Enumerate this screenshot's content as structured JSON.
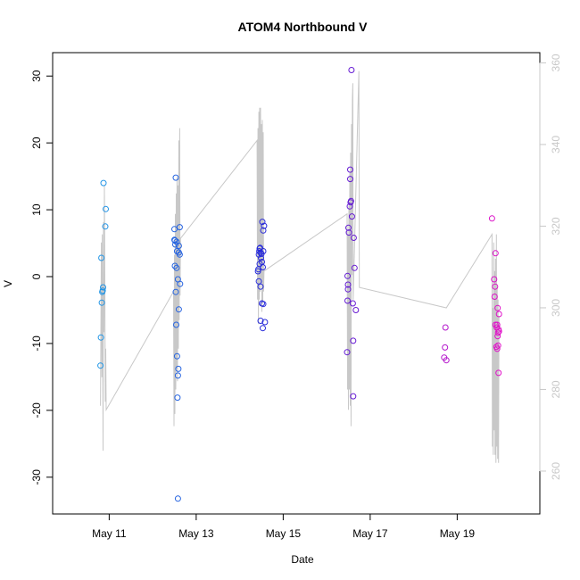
{
  "chart_data": {
    "type": "scatter",
    "title": "ATOM4 Northbound V",
    "xlabel": "Date",
    "ylabel": "V",
    "x_ticks": [
      "May 11",
      "May 13",
      "May 15",
      "May 17",
      "May 19"
    ],
    "y_ticks": [
      "-30",
      "-20",
      "-10",
      "0",
      "10",
      "20",
      "30"
    ],
    "y2_ticks": [
      "260",
      "280",
      "300",
      "320",
      "340",
      "360"
    ],
    "xlim_days": [
      9.7,
      20.9
    ],
    "ylim": [
      -35.5,
      33.5
    ],
    "y2lim": [
      249.5,
      362.5
    ],
    "grid": false,
    "legend": "none",
    "colors": {
      "points_start": "#2196e6",
      "points_mid": "#2a20d8",
      "points_end": "#e011c8",
      "line": "#c8c8c8",
      "axis_right": "#c8c8c8"
    },
    "points": [
      {
        "x": "May 10 19:12",
        "y": -13.3
      },
      {
        "x": "May 10 19:26",
        "y": -9.1
      },
      {
        "x": "May 10 19:55",
        "y": -3.9
      },
      {
        "x": "May 10 20:10",
        "y": -2.3
      },
      {
        "x": "May 10 20:24",
        "y": -2.1
      },
      {
        "x": "May 10 20:38",
        "y": -1.6
      },
      {
        "x": "May 10 19:40",
        "y": 2.8
      },
      {
        "x": "May 10 20:53",
        "y": 14.0
      },
      {
        "x": "May 10 21:50",
        "y": 7.5
      },
      {
        "x": "May 10 22:05",
        "y": 10.1
      },
      {
        "x": "May 12 12:00",
        "y": 7.1
      },
      {
        "x": "May 12 12:00",
        "y": 5.5
      },
      {
        "x": "May 12 12:14",
        "y": 5.4
      },
      {
        "x": "May 12 12:29",
        "y": 4.8
      },
      {
        "x": "May 12 13:12",
        "y": 5.2
      },
      {
        "x": "May 12 12:14",
        "y": 1.6
      },
      {
        "x": "May 12 13:12",
        "y": 1.3
      },
      {
        "x": "May 12 12:43",
        "y": -2.3
      },
      {
        "x": "May 12 12:43",
        "y": 14.8
      },
      {
        "x": "May 12 13:26",
        "y": 3.8
      },
      {
        "x": "May 12 13:55",
        "y": -0.4
      },
      {
        "x": "May 12 14:24",
        "y": 3.6
      },
      {
        "x": "May 12 14:53",
        "y": 3.3
      },
      {
        "x": "May 12 14:24",
        "y": 4.6
      },
      {
        "x": "May 12 14:53",
        "y": 7.4
      },
      {
        "x": "May 12 15:07",
        "y": -1.1
      },
      {
        "x": "May 12 12:58",
        "y": -7.2
      },
      {
        "x": "May 12 14:24",
        "y": -4.9
      },
      {
        "x": "May 12 13:26",
        "y": -11.9
      },
      {
        "x": "May 12 14:10",
        "y": -13.8
      },
      {
        "x": "May 12 13:55",
        "y": -14.8
      },
      {
        "x": "May 12 13:40",
        "y": -18.1
      },
      {
        "x": "May 12 13:55",
        "y": -33.2
      },
      {
        "x": "May 14 10:05",
        "y": 0.8
      },
      {
        "x": "May 14 10:19",
        "y": 1.1
      },
      {
        "x": "May 14 10:34",
        "y": 3.3
      },
      {
        "x": "May 14 10:48",
        "y": 3.8
      },
      {
        "x": "May 14 11:02",
        "y": 4.2
      },
      {
        "x": "May 14 11:17",
        "y": 4.3
      },
      {
        "x": "May 14 11:31",
        "y": 3.6
      },
      {
        "x": "May 14 11:46",
        "y": 2.8
      },
      {
        "x": "May 14 12:00",
        "y": 3.4
      },
      {
        "x": "May 14 12:14",
        "y": 2.2
      },
      {
        "x": "May 14 11:02",
        "y": 1.9
      },
      {
        "x": "May 14 11:31",
        "y": -1.5
      },
      {
        "x": "May 14 10:34",
        "y": -0.7
      },
      {
        "x": "May 14 12:58",
        "y": 3.8
      },
      {
        "x": "May 14 12:43",
        "y": 1.4
      },
      {
        "x": "May 14 12:29",
        "y": 8.2
      },
      {
        "x": "May 14 12:58",
        "y": 6.9
      },
      {
        "x": "May 14 13:26",
        "y": 7.6
      },
      {
        "x": "May 14 12:14",
        "y": -4.0
      },
      {
        "x": "May 14 12:58",
        "y": -4.1
      },
      {
        "x": "May 14 11:31",
        "y": -6.6
      },
      {
        "x": "May 14 12:43",
        "y": -7.7
      },
      {
        "x": "May 14 13:55",
        "y": -6.8
      },
      {
        "x": "May 16 12:00",
        "y": 7.3
      },
      {
        "x": "May 16 12:14",
        "y": 6.6
      },
      {
        "x": "May 16 12:43",
        "y": 10.5
      },
      {
        "x": "May 16 13:12",
        "y": 11.1
      },
      {
        "x": "May 16 13:26",
        "y": 11.3
      },
      {
        "x": "May 16 12:58",
        "y": 14.6
      },
      {
        "x": "May 16 12:58",
        "y": 16.0
      },
      {
        "x": "May 16 13:55",
        "y": 9.0
      },
      {
        "x": "May 16 13:40",
        "y": 30.9
      },
      {
        "x": "May 16 11:31",
        "y": 0.1
      },
      {
        "x": "May 16 11:46",
        "y": -1.2
      },
      {
        "x": "May 16 11:46",
        "y": -1.9
      },
      {
        "x": "May 16 11:31",
        "y": -3.6
      },
      {
        "x": "May 16 14:53",
        "y": 5.8
      },
      {
        "x": "May 16 15:22",
        "y": 1.3
      },
      {
        "x": "May 16 14:24",
        "y": -4.0
      },
      {
        "x": "May 16 16:05",
        "y": -5.0
      },
      {
        "x": "May 16 14:38",
        "y": -9.6
      },
      {
        "x": "May 16 11:17",
        "y": -11.3
      },
      {
        "x": "May 16 14:38",
        "y": -17.9
      },
      {
        "x": "May 18 17:17",
        "y": -10.6
      },
      {
        "x": "May 18 17:31",
        "y": -7.6
      },
      {
        "x": "May 18 16:48",
        "y": -12.1
      },
      {
        "x": "May 18 18:00",
        "y": -12.5
      },
      {
        "x": "May 19 19:12",
        "y": 8.7
      },
      {
        "x": "May 19 21:07",
        "y": 3.5
      },
      {
        "x": "May 19 20:24",
        "y": -0.4
      },
      {
        "x": "May 19 20:53",
        "y": -1.5
      },
      {
        "x": "May 19 20:38",
        "y": -3.0
      },
      {
        "x": "May 19 22:19",
        "y": -4.7
      },
      {
        "x": "May 19 23:02",
        "y": -5.6
      },
      {
        "x": "May 19 21:07",
        "y": -7.2
      },
      {
        "x": "May 19 21:50",
        "y": -7.6
      },
      {
        "x": "May 19 22:05",
        "y": -7.2
      },
      {
        "x": "May 19 22:34",
        "y": -8.4
      },
      {
        "x": "May 19 22:48",
        "y": -7.9
      },
      {
        "x": "May 19 23:02",
        "y": -8.2
      },
      {
        "x": "May 19 22:19",
        "y": -8.9
      },
      {
        "x": "May 19 21:36",
        "y": -10.5
      },
      {
        "x": "May 19 22:05",
        "y": -10.8
      },
      {
        "x": "May 19 22:34",
        "y": -10.3
      },
      {
        "x": "May 19 22:48",
        "y": -14.4
      }
    ],
    "line_y2": [
      {
        "x": "May 10 19:12",
        "y": 276
      },
      {
        "x": "May 10 19:40",
        "y": 316
      },
      {
        "x": "May 10 19:55",
        "y": 283
      },
      {
        "x": "May 10 20:10",
        "y": 318
      },
      {
        "x": "May 10 20:24",
        "y": 291
      },
      {
        "x": "May 10 20:38",
        "y": 265
      },
      {
        "x": "May 10 20:53",
        "y": 321
      },
      {
        "x": "May 10 21:07",
        "y": 294
      },
      {
        "x": "May 10 21:22",
        "y": 330
      },
      {
        "x": "May 10 21:36",
        "y": 306
      },
      {
        "x": "May 10 21:50",
        "y": 277
      },
      {
        "x": "May 10 22:05",
        "y": 290
      },
      {
        "x": "May 10 22:19",
        "y": 275
      },
      {
        "x": "May 12 11:31",
        "y": 304
      },
      {
        "x": "May 12 11:46",
        "y": 271
      },
      {
        "x": "May 12 12:00",
        "y": 313
      },
      {
        "x": "May 12 12:14",
        "y": 274
      },
      {
        "x": "May 12 12:29",
        "y": 323
      },
      {
        "x": "May 12 12:43",
        "y": 280
      },
      {
        "x": "May 12 12:58",
        "y": 328
      },
      {
        "x": "May 12 13:12",
        "y": 285
      },
      {
        "x": "May 12 13:26",
        "y": 332
      },
      {
        "x": "May 12 13:40",
        "y": 282
      },
      {
        "x": "May 12 13:55",
        "y": 330
      },
      {
        "x": "May 12 14:10",
        "y": 290
      },
      {
        "x": "May 12 14:24",
        "y": 341
      },
      {
        "x": "May 12 14:38",
        "y": 297
      },
      {
        "x": "May 12 14:53",
        "y": 344
      },
      {
        "x": "May 12 15:07",
        "y": 303
      },
      {
        "x": "May 12 15:22",
        "y": 317
      },
      {
        "x": "May 14 09:36",
        "y": 341
      },
      {
        "x": "May 14 09:50",
        "y": 302
      },
      {
        "x": "May 14 10:05",
        "y": 344
      },
      {
        "x": "May 14 10:19",
        "y": 296
      },
      {
        "x": "May 14 10:34",
        "y": 348
      },
      {
        "x": "May 14 10:48",
        "y": 302
      },
      {
        "x": "May 14 11:02",
        "y": 349
      },
      {
        "x": "May 14 11:17",
        "y": 304
      },
      {
        "x": "May 14 11:31",
        "y": 349
      },
      {
        "x": "May 14 11:46",
        "y": 306
      },
      {
        "x": "May 14 12:00",
        "y": 345
      },
      {
        "x": "May 14 12:14",
        "y": 299
      },
      {
        "x": "May 14 12:29",
        "y": 346
      },
      {
        "x": "May 14 12:43",
        "y": 301
      },
      {
        "x": "May 14 12:58",
        "y": 343
      },
      {
        "x": "May 14 13:12",
        "y": 304
      },
      {
        "x": "May 14 13:26",
        "y": 309
      },
      {
        "x": "May 16 11:17",
        "y": 323
      },
      {
        "x": "May 16 11:31",
        "y": 280
      },
      {
        "x": "May 16 11:46",
        "y": 318
      },
      {
        "x": "May 16 12:00",
        "y": 275
      },
      {
        "x": "May 16 12:14",
        "y": 325
      },
      {
        "x": "May 16 12:29",
        "y": 280
      },
      {
        "x": "May 16 12:43",
        "y": 333
      },
      {
        "x": "May 16 12:58",
        "y": 276
      },
      {
        "x": "May 16 13:12",
        "y": 338
      },
      {
        "x": "May 16 13:26",
        "y": 271
      },
      {
        "x": "May 16 13:40",
        "y": 345
      },
      {
        "x": "May 16 13:55",
        "y": 308
      },
      {
        "x": "May 16 14:10",
        "y": 351
      },
      {
        "x": "May 16 14:24",
        "y": 355
      },
      {
        "x": "May 16 14:38",
        "y": 302
      },
      {
        "x": "May 16 17:46",
        "y": 358
      },
      {
        "x": "May 16 18:00",
        "y": 305
      },
      {
        "x": "May 18 18:00",
        "y": 300
      },
      {
        "x": "May 19 19:12",
        "y": 318
      },
      {
        "x": "May 19 19:26",
        "y": 266
      },
      {
        "x": "May 19 19:40",
        "y": 300
      },
      {
        "x": "May 19 19:55",
        "y": 264
      },
      {
        "x": "May 19 20:10",
        "y": 316
      },
      {
        "x": "May 19 20:24",
        "y": 270
      },
      {
        "x": "May 19 20:38",
        "y": 309
      },
      {
        "x": "May 19 20:53",
        "y": 264
      },
      {
        "x": "May 19 21:07",
        "y": 312
      },
      {
        "x": "May 19 21:22",
        "y": 262
      },
      {
        "x": "May 19 21:36",
        "y": 318
      },
      {
        "x": "May 19 21:50",
        "y": 266
      },
      {
        "x": "May 19 22:05",
        "y": 305
      },
      {
        "x": "May 19 22:19",
        "y": 263
      },
      {
        "x": "May 19 22:34",
        "y": 302
      },
      {
        "x": "May 19 22:48",
        "y": 262
      },
      {
        "x": "May 19 23:02",
        "y": 298
      }
    ]
  }
}
